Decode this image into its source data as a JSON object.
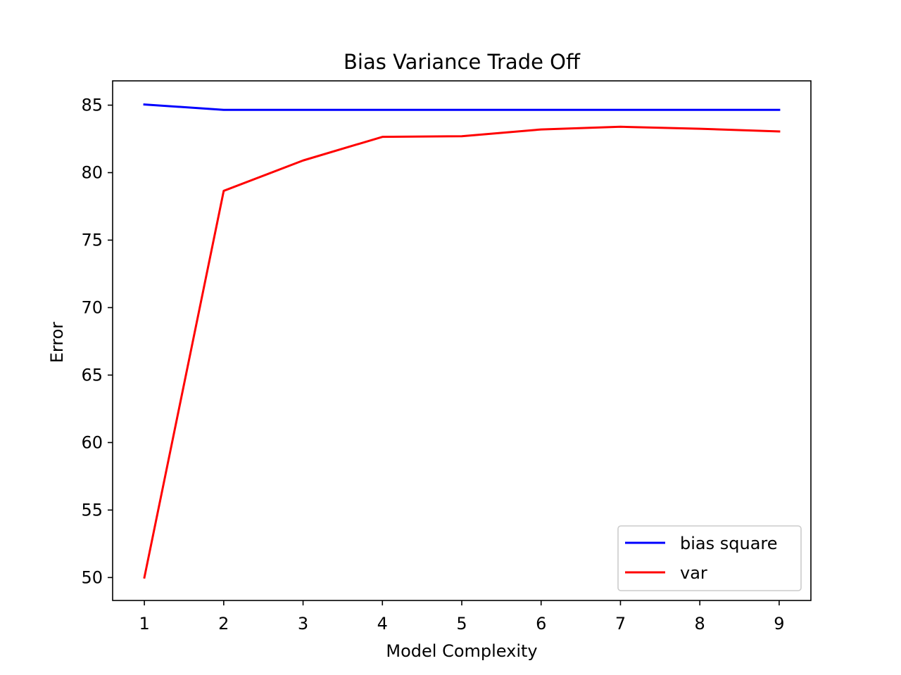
{
  "chart_data": {
    "type": "line",
    "title": "Bias Variance Trade Off",
    "xlabel": "Model Complexity",
    "ylabel": "Error",
    "x": [
      1,
      2,
      3,
      4,
      5,
      6,
      7,
      8,
      9
    ],
    "xticks": [
      1,
      2,
      3,
      4,
      5,
      6,
      7,
      8,
      9
    ],
    "yticks": [
      50,
      55,
      60,
      65,
      70,
      75,
      80,
      85
    ],
    "xlim": [
      0.6,
      9.4
    ],
    "ylim": [
      48.3,
      86.8
    ],
    "grid": false,
    "legend_position": "lower-right",
    "series": [
      {
        "name": "bias square",
        "color": "#0000ff",
        "values": [
          85.05,
          84.65,
          84.65,
          84.65,
          84.65,
          84.65,
          84.65,
          84.65,
          84.65
        ]
      },
      {
        "name": "var",
        "color": "#ff0000",
        "values": [
          50.0,
          78.65,
          80.9,
          82.65,
          82.7,
          83.2,
          83.4,
          83.25,
          83.05
        ]
      }
    ]
  }
}
